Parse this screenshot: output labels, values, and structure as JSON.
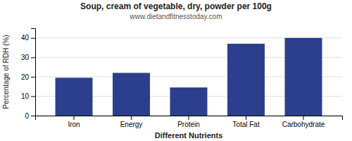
{
  "chart_data": {
    "type": "bar",
    "title": "Soup, cream of vegetable, dry, powder per 100g",
    "subtitle": "www.dietandfitnesstoday.com",
    "xlabel": "Different Nutrients",
    "ylabel": "Percentage of RDH (%)",
    "categories": [
      "Iron",
      "Energy",
      "Protein",
      "Total Fat",
      "Carbohydrate"
    ],
    "values": [
      19.5,
      22.0,
      14.5,
      37.0,
      40.0
    ],
    "color": "#2b3f8c",
    "ylim": [
      0,
      45
    ],
    "yticks": [
      0,
      10,
      20,
      30,
      40
    ],
    "grid": true
  }
}
